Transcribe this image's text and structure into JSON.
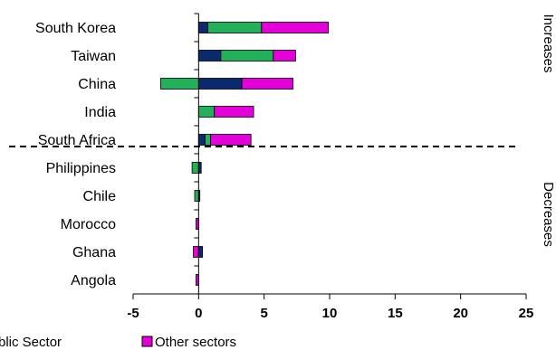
{
  "chart_data": {
    "type": "bar",
    "orientation": "horizontal",
    "stacked": true,
    "categories": [
      "South Korea",
      "Taiwan",
      "China",
      "India",
      "South Africa",
      "Philippines",
      "Chile",
      "Morocco",
      "Ghana",
      "Angola"
    ],
    "series": [
      {
        "name": "Public Sector",
        "color": "#0b2a6e",
        "values": [
          0.7,
          1.7,
          3.3,
          0.0,
          0.5,
          0.2,
          0.1,
          0.0,
          0.3,
          0.0
        ]
      },
      {
        "name": "",
        "color": "#22b05a",
        "values": [
          4.1,
          4.0,
          -2.9,
          1.2,
          0.4,
          -0.5,
          -0.3,
          0.0,
          0.0,
          0.0
        ]
      },
      {
        "name": "Other sectors",
        "color": "#e400d8",
        "values": [
          5.1,
          1.7,
          3.9,
          3.0,
          3.1,
          0.0,
          0.0,
          -0.2,
          -0.4,
          -0.2
        ]
      }
    ],
    "xlim": [
      -5,
      25
    ],
    "xticks": [
      "-5",
      "0",
      "5",
      "10",
      "15",
      "20",
      "25"
    ],
    "group_labels": [
      "Increases",
      "Decreases"
    ],
    "legend_position": "bottom",
    "legend_visible_text": [
      "blic Sector",
      "Other sectors"
    ]
  }
}
